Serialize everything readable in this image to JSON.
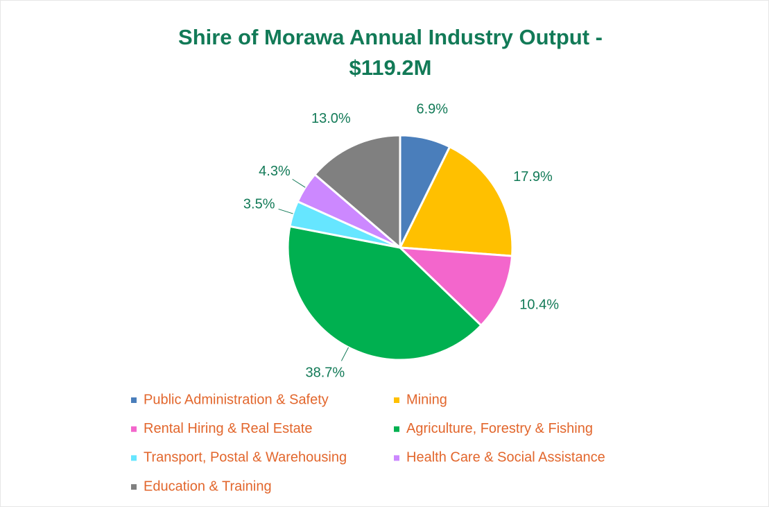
{
  "chart_data": {
    "type": "pie",
    "title": "Shire of Morawa Annual Industry Output - $119.2M",
    "categories": [
      "Public Administration & Safety",
      "Mining",
      "Rental Hiring & Real Estate",
      "Agriculture, Forestry & Fishing",
      "Transport, Postal & Warehousing",
      "Health Care & Social Assistance",
      "Education & Training"
    ],
    "values": [
      6.9,
      17.9,
      10.4,
      38.7,
      3.5,
      4.3,
      13.0
    ],
    "value_labels": [
      "6.9%",
      "17.9%",
      "10.4%",
      "38.7%",
      "3.5%",
      "4.3%",
      "13.0%"
    ],
    "colors": [
      "#4a7ebb",
      "#ffc000",
      "#f366cc",
      "#00b050",
      "#66e6ff",
      "#cc88ff",
      "#808080"
    ],
    "legend": "bottom"
  }
}
